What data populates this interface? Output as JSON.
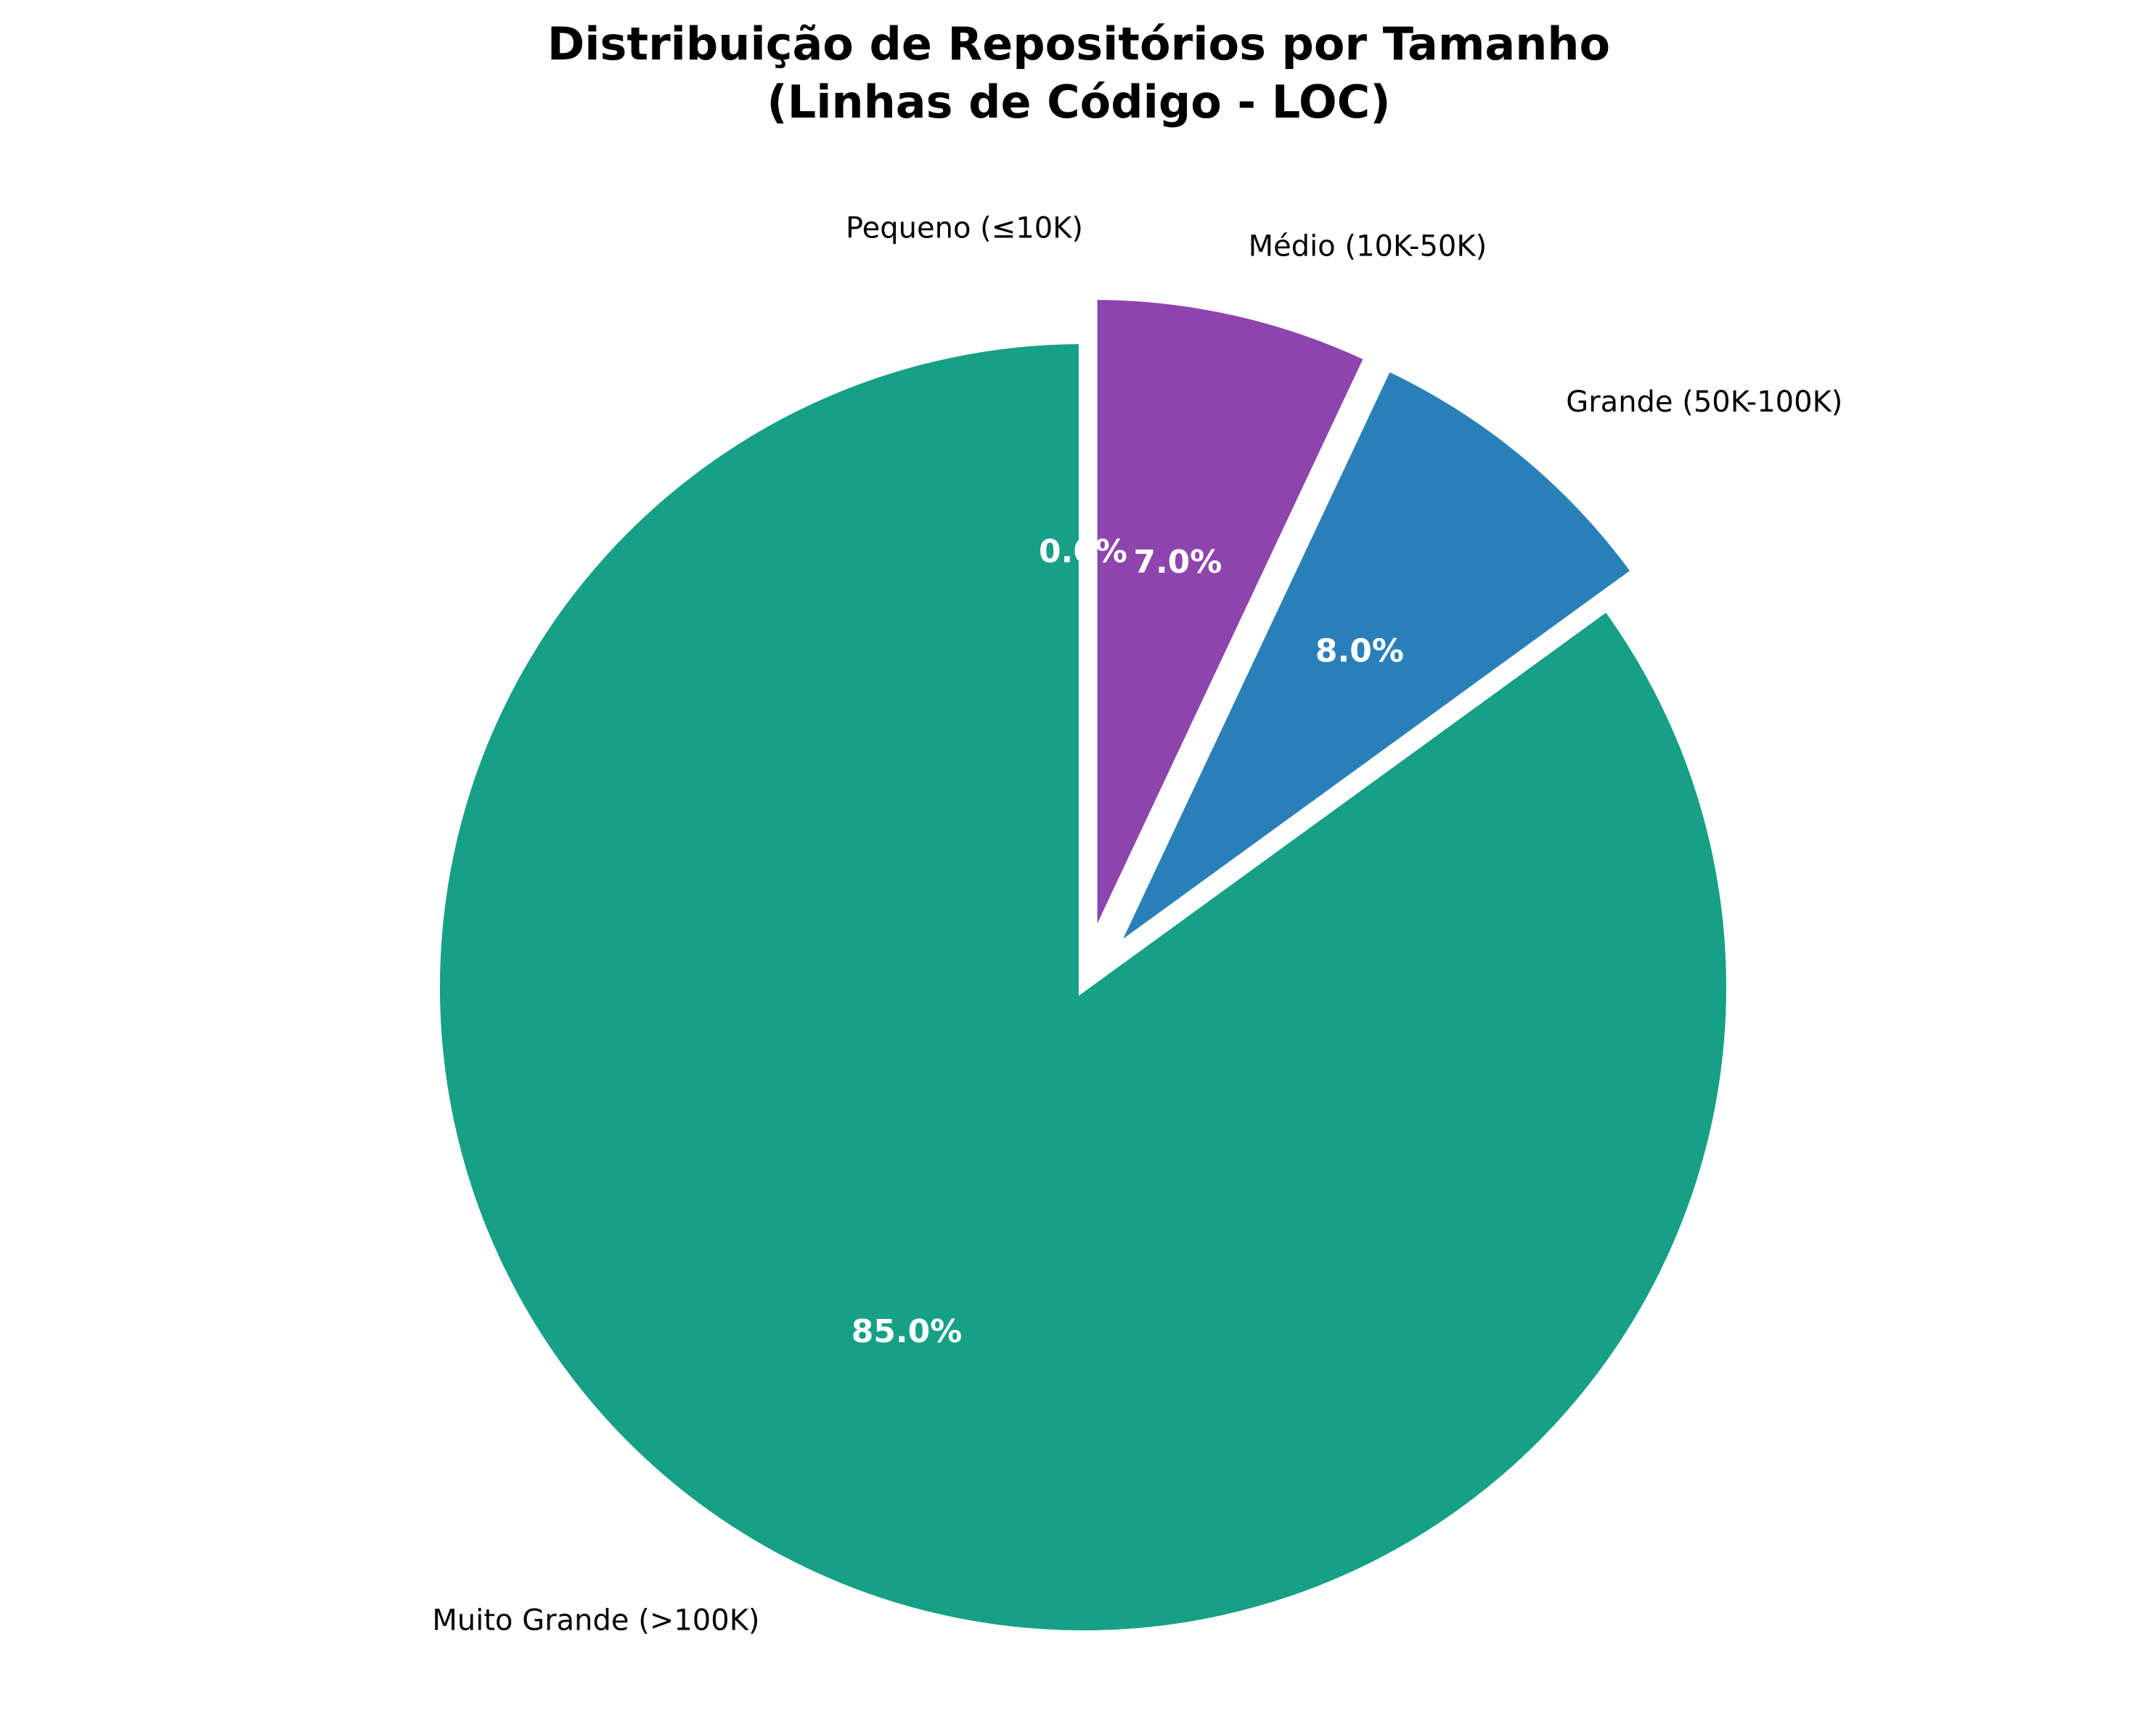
{
  "chart_data": {
    "type": "pie",
    "title_lines": [
      "Distribuição de Repositórios por Tamanho",
      "(Linhas de Código - LOC)"
    ],
    "start_angle_deg": 90,
    "direction": "clockwise",
    "slices": [
      {
        "label": "Pequeno (≤10K)",
        "value": 0.0,
        "pct_label": "0.0%",
        "color": "#e74c3c",
        "exploded": true
      },
      {
        "label": "Médio (10K-50K)",
        "value": 7.0,
        "pct_label": "7.0%",
        "color": "#8e44ad",
        "exploded": true
      },
      {
        "label": "Grande (50K-100K)",
        "value": 8.0,
        "pct_label": "8.0%",
        "color": "#2980b9",
        "exploded": true
      },
      {
        "label": "Muito Grande (>100K)",
        "value": 85.0,
        "pct_label": "85.0%",
        "color": "#16a085",
        "exploded": false
      }
    ],
    "edge_color": "#ffffff"
  }
}
